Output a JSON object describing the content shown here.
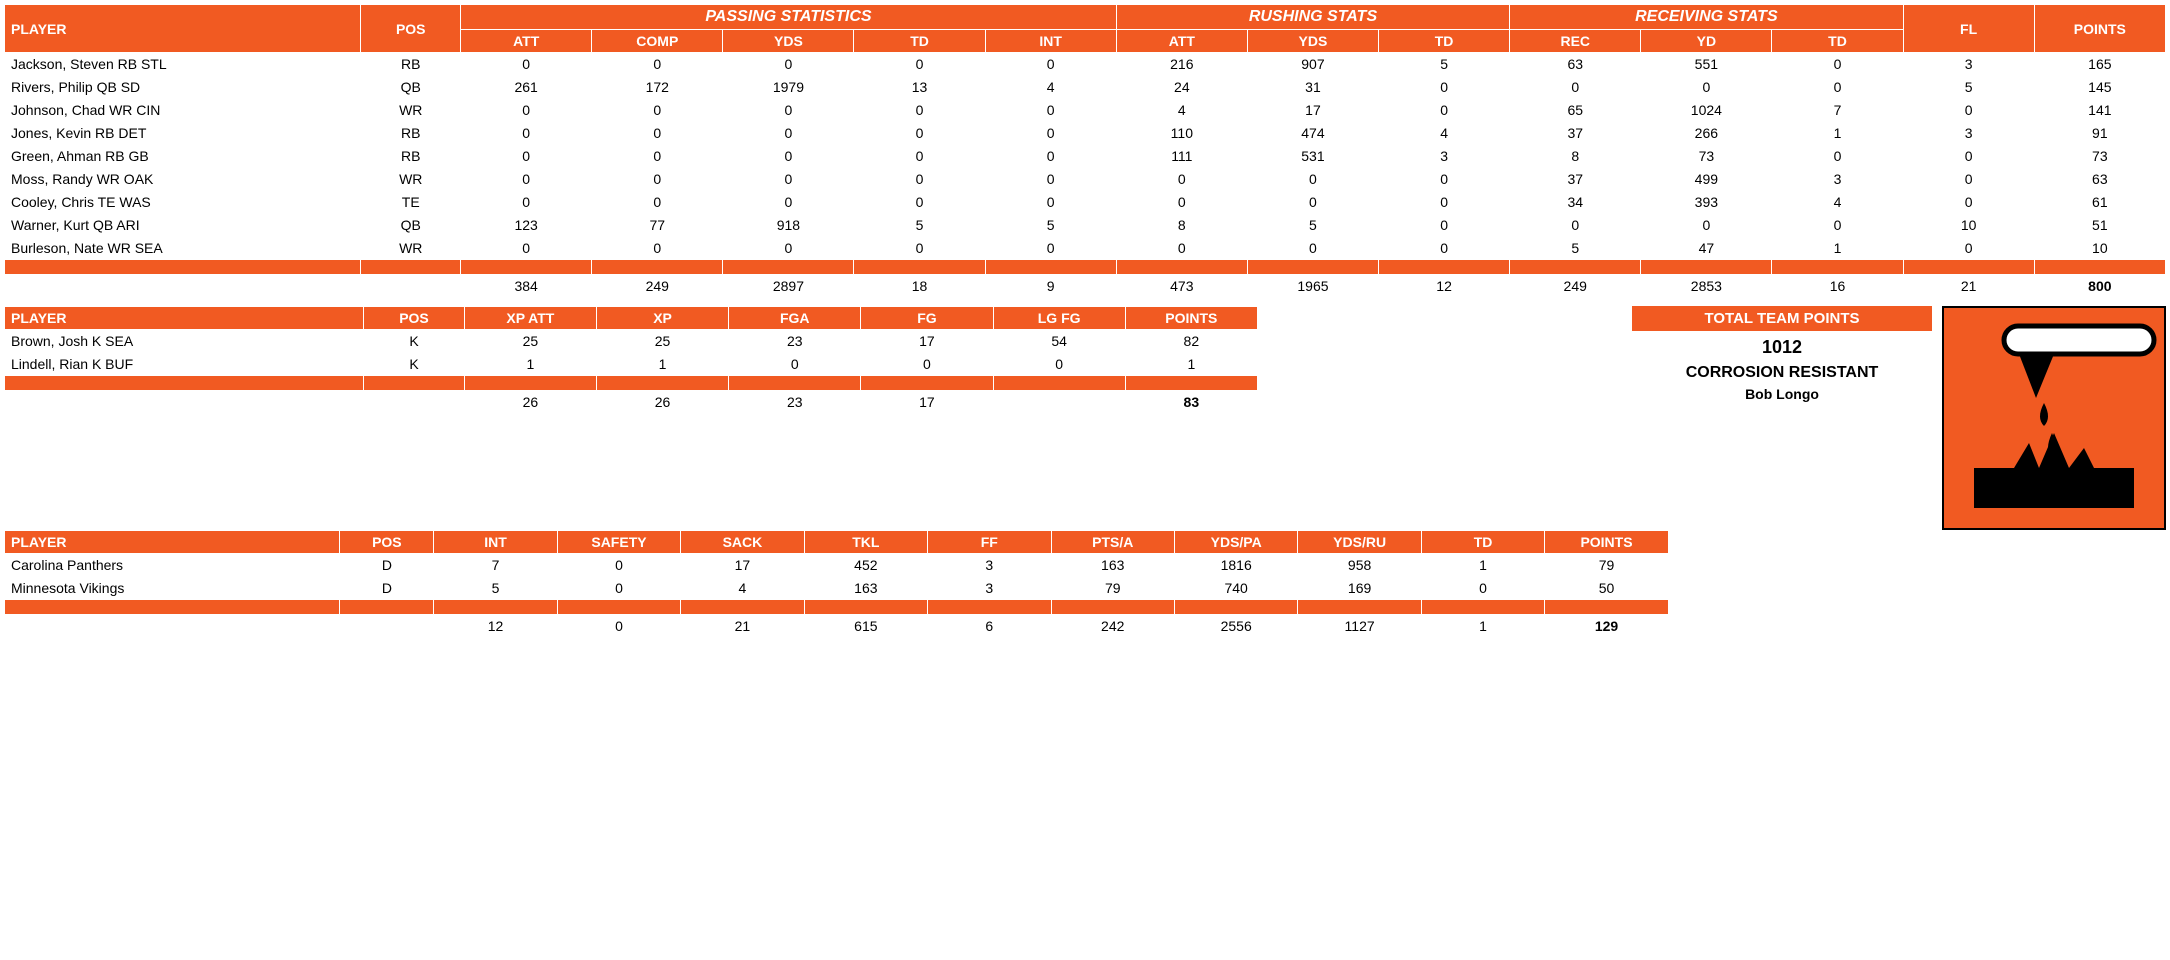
{
  "colors": {
    "accent": "#f15a22",
    "text": "#000000",
    "bg": "#ffffff"
  },
  "offense": {
    "group_headers": {
      "passing": "PASSING STATISTICS",
      "rushing": "RUSHING STATS",
      "receiving": "RECEIVING STATS"
    },
    "headers": {
      "player": "PLAYER",
      "pos": "POS",
      "p_att": "ATT",
      "p_comp": "COMP",
      "p_yds": "YDS",
      "p_td": "TD",
      "p_int": "INT",
      "r_att": "ATT",
      "r_yds": "YDS",
      "r_td": "TD",
      "rec": "REC",
      "rec_yd": "YD",
      "rec_td": "TD",
      "fl": "FL",
      "points": "POINTS"
    },
    "rows": [
      {
        "player": "Jackson, Steven RB STL",
        "pos": "RB",
        "p_att": "0",
        "p_comp": "0",
        "p_yds": "0",
        "p_td": "0",
        "p_int": "0",
        "r_att": "216",
        "r_yds": "907",
        "r_td": "5",
        "rec": "63",
        "rec_yd": "551",
        "rec_td": "0",
        "fl": "3",
        "points": "165"
      },
      {
        "player": "Rivers, Philip QB SD",
        "pos": "QB",
        "p_att": "261",
        "p_comp": "172",
        "p_yds": "1979",
        "p_td": "13",
        "p_int": "4",
        "r_att": "24",
        "r_yds": "31",
        "r_td": "0",
        "rec": "0",
        "rec_yd": "0",
        "rec_td": "0",
        "fl": "5",
        "points": "145"
      },
      {
        "player": "Johnson, Chad WR CIN",
        "pos": "WR",
        "p_att": "0",
        "p_comp": "0",
        "p_yds": "0",
        "p_td": "0",
        "p_int": "0",
        "r_att": "4",
        "r_yds": "17",
        "r_td": "0",
        "rec": "65",
        "rec_yd": "1024",
        "rec_td": "7",
        "fl": "0",
        "points": "141"
      },
      {
        "player": "Jones, Kevin RB DET",
        "pos": "RB",
        "p_att": "0",
        "p_comp": "0",
        "p_yds": "0",
        "p_td": "0",
        "p_int": "0",
        "r_att": "110",
        "r_yds": "474",
        "r_td": "4",
        "rec": "37",
        "rec_yd": "266",
        "rec_td": "1",
        "fl": "3",
        "points": "91"
      },
      {
        "player": "Green, Ahman RB GB",
        "pos": "RB",
        "p_att": "0",
        "p_comp": "0",
        "p_yds": "0",
        "p_td": "0",
        "p_int": "0",
        "r_att": "111",
        "r_yds": "531",
        "r_td": "3",
        "rec": "8",
        "rec_yd": "73",
        "rec_td": "0",
        "fl": "0",
        "points": "73"
      },
      {
        "player": "Moss, Randy WR OAK",
        "pos": "WR",
        "p_att": "0",
        "p_comp": "0",
        "p_yds": "0",
        "p_td": "0",
        "p_int": "0",
        "r_att": "0",
        "r_yds": "0",
        "r_td": "0",
        "rec": "37",
        "rec_yd": "499",
        "rec_td": "3",
        "fl": "0",
        "points": "63"
      },
      {
        "player": "Cooley, Chris TE WAS",
        "pos": "TE",
        "p_att": "0",
        "p_comp": "0",
        "p_yds": "0",
        "p_td": "0",
        "p_int": "0",
        "r_att": "0",
        "r_yds": "0",
        "r_td": "0",
        "rec": "34",
        "rec_yd": "393",
        "rec_td": "4",
        "fl": "0",
        "points": "61"
      },
      {
        "player": "Warner, Kurt QB ARI",
        "pos": "QB",
        "p_att": "123",
        "p_comp": "77",
        "p_yds": "918",
        "p_td": "5",
        "p_int": "5",
        "r_att": "8",
        "r_yds": "5",
        "r_td": "0",
        "rec": "0",
        "rec_yd": "0",
        "rec_td": "0",
        "fl": "10",
        "points": "51"
      },
      {
        "player": "Burleson, Nate WR SEA",
        "pos": "WR",
        "p_att": "0",
        "p_comp": "0",
        "p_yds": "0",
        "p_td": "0",
        "p_int": "0",
        "r_att": "0",
        "r_yds": "0",
        "r_td": "0",
        "rec": "5",
        "rec_yd": "47",
        "rec_td": "1",
        "fl": "0",
        "points": "10"
      }
    ],
    "totals": {
      "p_att": "384",
      "p_comp": "249",
      "p_yds": "2897",
      "p_td": "18",
      "p_int": "9",
      "r_att": "473",
      "r_yds": "1965",
      "r_td": "12",
      "rec": "249",
      "rec_yd": "2853",
      "rec_td": "16",
      "fl": "21",
      "points": "800"
    }
  },
  "kicking": {
    "headers": {
      "player": "PLAYER",
      "pos": "POS",
      "xpatt": "XP ATT",
      "xp": "XP",
      "fga": "FGA",
      "fg": "FG",
      "lgfg": "LG FG",
      "points": "POINTS"
    },
    "rows": [
      {
        "player": "Brown, Josh K SEA",
        "pos": "K",
        "xpatt": "25",
        "xp": "25",
        "fga": "23",
        "fg": "17",
        "lgfg": "54",
        "points": "82"
      },
      {
        "player": "Lindell, Rian K BUF",
        "pos": "K",
        "xpatt": "1",
        "xp": "1",
        "fga": "0",
        "fg": "0",
        "lgfg": "0",
        "points": "1"
      }
    ],
    "totals": {
      "xpatt": "26",
      "xp": "26",
      "fga": "23",
      "fg": "17",
      "lgfg": "",
      "points": "83"
    }
  },
  "defense": {
    "headers": {
      "player": "PLAYER",
      "pos": "POS",
      "int": "INT",
      "safety": "SAFETY",
      "sack": "SACK",
      "tkl": "TKL",
      "ff": "FF",
      "ptsa": "PTS/A",
      "ydspa": "YDS/PA",
      "ydsru": "YDS/RU",
      "td": "TD",
      "points": "POINTS"
    },
    "rows": [
      {
        "player": "Carolina Panthers",
        "pos": "D",
        "int": "7",
        "safety": "0",
        "sack": "17",
        "tkl": "452",
        "ff": "3",
        "ptsa": "163",
        "ydspa": "1816",
        "ydsru": "958",
        "td": "1",
        "points": "79"
      },
      {
        "player": "Minnesota Vikings",
        "pos": "D",
        "int": "5",
        "safety": "0",
        "sack": "4",
        "tkl": "163",
        "ff": "3",
        "ptsa": "79",
        "ydspa": "740",
        "ydsru": "169",
        "td": "0",
        "points": "50"
      }
    ],
    "totals": {
      "int": "12",
      "safety": "0",
      "sack": "21",
      "tkl": "615",
      "ff": "6",
      "ptsa": "242",
      "ydspa": "2556",
      "ydsru": "1127",
      "td": "1",
      "points": "129"
    }
  },
  "team": {
    "title": "TOTAL TEAM POINTS",
    "points": "1012",
    "name": "CORROSION RESISTANT",
    "owner": "Bob Longo"
  }
}
